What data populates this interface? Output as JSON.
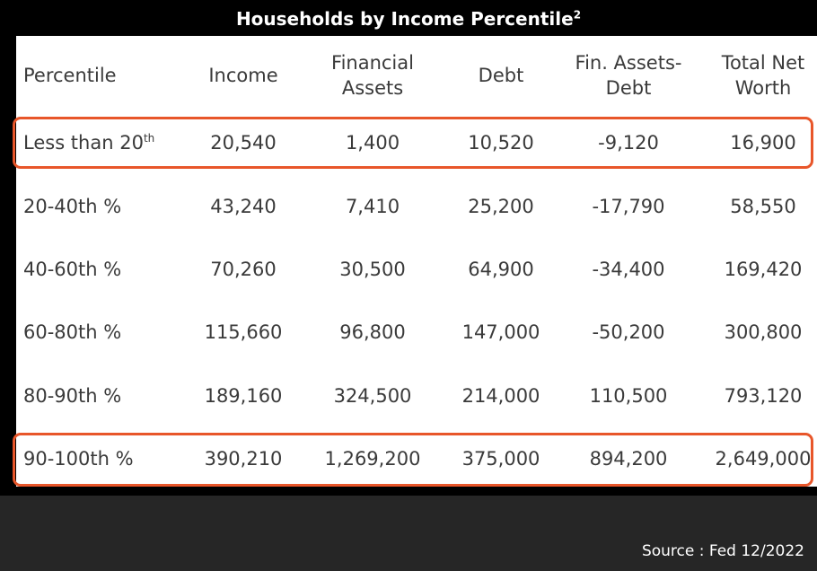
{
  "chart_data": {
    "type": "table",
    "title": "Households by Income Percentile",
    "title_superscript": "2",
    "columns": [
      {
        "lines": [
          "Percentile"
        ]
      },
      {
        "lines": [
          "Income"
        ]
      },
      {
        "lines": [
          "Financial",
          "Assets"
        ]
      },
      {
        "lines": [
          "Debt"
        ]
      },
      {
        "lines": [
          "Fin. Assets-",
          "Debt"
        ]
      },
      {
        "lines": [
          "Total Net",
          "Worth"
        ]
      }
    ],
    "rows": [
      {
        "label": "Less than 20",
        "label_sup": "th",
        "income": "20,540",
        "financial_assets": "1,400",
        "debt": "10,520",
        "fin_assets_minus_debt": "-9,120",
        "total_net_worth": "16,900",
        "highlighted": true
      },
      {
        "label": "20-40th %",
        "label_sup": "",
        "income": "43,240",
        "financial_assets": "7,410",
        "debt": "25,200",
        "fin_assets_minus_debt": "-17,790",
        "total_net_worth": "58,550",
        "highlighted": false
      },
      {
        "label": "40-60th %",
        "label_sup": "",
        "income": "70,260",
        "financial_assets": "30,500",
        "debt": "64,900",
        "fin_assets_minus_debt": "-34,400",
        "total_net_worth": "169,420",
        "highlighted": false
      },
      {
        "label": "60-80th %",
        "label_sup": "",
        "income": "115,660",
        "financial_assets": "96,800",
        "debt": "147,000",
        "fin_assets_minus_debt": "-50,200",
        "total_net_worth": "300,800",
        "highlighted": false
      },
      {
        "label": "80-90th %",
        "label_sup": "",
        "income": "189,160",
        "financial_assets": "324,500",
        "debt": "214,000",
        "fin_assets_minus_debt": "110,500",
        "total_net_worth": "793,120",
        "highlighted": false
      },
      {
        "label": "90-100th %",
        "label_sup": "",
        "income": "390,210",
        "financial_assets": "1,269,200",
        "debt": "375,000",
        "fin_assets_minus_debt": "894,200",
        "total_net_worth": "2,649,000",
        "highlighted": true
      }
    ],
    "source": "Source : Fed  12/2022"
  },
  "colors": {
    "background": "#262626",
    "table_bg": "#ffffff",
    "header_bg": "#000000",
    "highlight": "#e8562a",
    "text": "#3a3a3a"
  }
}
